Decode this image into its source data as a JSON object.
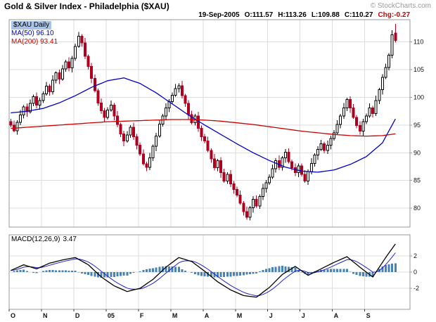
{
  "header": {
    "title": "Gold & Silver Index - Philadelphia ($XAU)",
    "copyright": "© StockCharts.com",
    "date": "19-Sep-2005",
    "quote": {
      "open": "O:111.57",
      "high": "H:113.26",
      "low": "L:109.88",
      "close": "C:110.27",
      "change": "Chg:-0.27"
    }
  },
  "legend": {
    "symbol": "$XAU Daily",
    "ma50": "MA(50) 96.10",
    "ma200": "MA(200) 93.41",
    "macd_label": "MACD(12,26,9)",
    "macd_value": "3.47"
  },
  "colors": {
    "grid": "#dddddd",
    "border": "#999999",
    "candle_down": "#b00020",
    "candle_up_fill": "#ffffff",
    "candle_stroke": "#000000",
    "ma50": "#0000cc",
    "ma200": "#cc0000",
    "macd_line": "#000000",
    "signal": "#2222cc",
    "histogram": "#4682b4",
    "change_negative": "#cc0000",
    "symbol_highlight": "#aac2e4"
  },
  "chart_data": [
    {
      "type": "candlestick",
      "title": "$XAU Daily",
      "x_labels": [
        "O",
        "N",
        "D",
        "05",
        "F",
        "M",
        "A",
        "M",
        "J",
        "J",
        "A",
        "S"
      ],
      "candles_per_month": 10,
      "ylim": [
        76.6,
        114.0
      ],
      "y_ticks": [
        80,
        85,
        90,
        95,
        100,
        105,
        110
      ],
      "grid": true,
      "last_quote": {
        "open": 111.57,
        "high": 113.26,
        "low": 109.88,
        "close": 110.27,
        "change": -0.27
      },
      "candles": [
        [
          95.6,
          96.1,
          94.6,
          95.0
        ],
        [
          95.0,
          95.8,
          93.7,
          94.0
        ],
        [
          94.0,
          95.9,
          93.3,
          95.5
        ],
        [
          95.5,
          97.7,
          95.0,
          96.8
        ],
        [
          96.8,
          98.6,
          96.2,
          98.3
        ],
        [
          98.3,
          98.9,
          96.5,
          97.4
        ],
        [
          97.4,
          99.6,
          97.1,
          98.9
        ],
        [
          98.9,
          100.5,
          98.4,
          100.1
        ],
        [
          100.1,
          100.9,
          98.0,
          98.6
        ],
        [
          98.6,
          99.9,
          97.8,
          99.4
        ],
        [
          99.4,
          101.1,
          99.0,
          100.6
        ],
        [
          100.6,
          102.8,
          100.3,
          102.0
        ],
        [
          102.0,
          102.4,
          100.3,
          101.0
        ],
        [
          101.0,
          104.0,
          100.5,
          103.1
        ],
        [
          103.1,
          104.7,
          102.5,
          104.4
        ],
        [
          104.4,
          105.0,
          102.4,
          103.3
        ],
        [
          103.3,
          105.8,
          103.0,
          105.1
        ],
        [
          105.1,
          106.8,
          104.6,
          106.4
        ],
        [
          106.4,
          107.2,
          104.7,
          105.3
        ],
        [
          105.3,
          107.5,
          104.5,
          107.0
        ],
        [
          107.0,
          109.7,
          106.6,
          109.2
        ],
        [
          109.2,
          111.8,
          108.9,
          111.0
        ],
        [
          111.0,
          111.4,
          109.1,
          109.8
        ],
        [
          109.8,
          110.7,
          106.9,
          107.4
        ],
        [
          107.4,
          107.7,
          105.0,
          105.6
        ],
        [
          105.6,
          106.2,
          102.5,
          103.4
        ],
        [
          103.4,
          104.1,
          100.9,
          101.2
        ],
        [
          101.2,
          101.6,
          98.5,
          99.0
        ],
        [
          99.0,
          99.8,
          97.0,
          97.6
        ],
        [
          97.6,
          98.1,
          95.6,
          96.4
        ],
        [
          96.4,
          98.2,
          96.0,
          97.7
        ],
        [
          97.7,
          99.4,
          97.4,
          98.6
        ],
        [
          98.6,
          99.0,
          95.9,
          96.6
        ],
        [
          96.6,
          97.5,
          94.6,
          95.1
        ],
        [
          95.1,
          95.4,
          92.8,
          93.4
        ],
        [
          93.4,
          94.0,
          91.2,
          92.1
        ],
        [
          92.1,
          93.9,
          91.8,
          93.2
        ],
        [
          93.2,
          95.0,
          92.7,
          94.6
        ],
        [
          94.6,
          95.4,
          92.3,
          92.9
        ],
        [
          92.9,
          93.4,
          90.6,
          91.4
        ],
        [
          91.4,
          91.9,
          89.4,
          89.8
        ],
        [
          89.8,
          90.6,
          87.7,
          88.0
        ],
        [
          88.0,
          88.4,
          86.7,
          87.4
        ],
        [
          87.4,
          90.0,
          86.9,
          89.1
        ],
        [
          89.1,
          91.5,
          88.5,
          91.2
        ],
        [
          91.2,
          93.6,
          90.3,
          93.0
        ],
        [
          93.0,
          95.9,
          92.7,
          95.2
        ],
        [
          95.2,
          97.0,
          94.7,
          96.6
        ],
        [
          96.6,
          98.9,
          96.0,
          98.1
        ],
        [
          98.1,
          99.7,
          97.3,
          99.2
        ],
        [
          99.2,
          100.9,
          98.8,
          100.4
        ],
        [
          100.4,
          102.4,
          100.1,
          101.6
        ],
        [
          101.6,
          102.5,
          100.9,
          102.1
        ],
        [
          102.1,
          103.0,
          99.8,
          100.3
        ],
        [
          100.3,
          100.6,
          98.3,
          98.9
        ],
        [
          98.9,
          99.5,
          96.0,
          96.9
        ],
        [
          96.9,
          97.6,
          95.1,
          95.4
        ],
        [
          95.4,
          97.0,
          94.9,
          96.6
        ],
        [
          96.6,
          97.4,
          93.8,
          94.4
        ],
        [
          94.4,
          94.9,
          92.1,
          92.9
        ],
        [
          92.9,
          93.4,
          91.7,
          92.1
        ],
        [
          92.1,
          92.9,
          90.1,
          90.4
        ],
        [
          90.4,
          90.8,
          88.2,
          88.9
        ],
        [
          88.9,
          89.8,
          86.8,
          87.3
        ],
        [
          87.3,
          88.9,
          86.7,
          88.6
        ],
        [
          88.6,
          89.2,
          85.5,
          86.4
        ],
        [
          86.4,
          87.1,
          84.6,
          84.9
        ],
        [
          84.9,
          86.5,
          84.4,
          86.1
        ],
        [
          86.1,
          86.9,
          83.8,
          84.4
        ],
        [
          84.4,
          84.9,
          82.6,
          83.4
        ],
        [
          83.4,
          83.9,
          82.0,
          82.4
        ],
        [
          82.4,
          83.2,
          80.6,
          80.9
        ],
        [
          80.9,
          81.3,
          78.7,
          79.4
        ],
        [
          79.4,
          80.3,
          77.9,
          78.4
        ],
        [
          78.4,
          80.4,
          77.8,
          80.1
        ],
        [
          80.1,
          82.2,
          79.2,
          81.6
        ],
        [
          81.6,
          82.3,
          80.1,
          80.4
        ],
        [
          80.4,
          82.5,
          79.9,
          82.1
        ],
        [
          82.1,
          84.4,
          81.5,
          83.6
        ],
        [
          83.6,
          85.1,
          82.8,
          84.6
        ],
        [
          84.6,
          86.1,
          84.2,
          85.6
        ],
        [
          85.6,
          87.9,
          85.3,
          87.1
        ],
        [
          87.1,
          89.0,
          86.4,
          88.6
        ],
        [
          88.6,
          89.5,
          86.9,
          87.4
        ],
        [
          87.4,
          89.4,
          86.8,
          89.1
        ],
        [
          89.1,
          90.7,
          88.2,
          90.1
        ],
        [
          90.1,
          90.8,
          88.1,
          88.4
        ],
        [
          88.4,
          88.8,
          86.8,
          87.3
        ],
        [
          87.3,
          88.1,
          85.8,
          86.4
        ],
        [
          86.4,
          88.1,
          85.6,
          87.6
        ],
        [
          87.6,
          88.1,
          85.7,
          86.1
        ],
        [
          86.1,
          86.9,
          84.6,
          84.9
        ],
        [
          84.9,
          87.0,
          84.2,
          86.6
        ],
        [
          86.6,
          89.0,
          86.1,
          88.1
        ],
        [
          88.1,
          89.9,
          87.5,
          89.6
        ],
        [
          89.6,
          91.2,
          88.7,
          90.6
        ],
        [
          90.6,
          92.3,
          90.3,
          91.6
        ],
        [
          91.6,
          92.0,
          89.9,
          90.4
        ],
        [
          90.4,
          92.2,
          89.8,
          91.4
        ],
        [
          91.4,
          93.1,
          90.6,
          92.6
        ],
        [
          92.6,
          94.1,
          92.2,
          93.6
        ],
        [
          93.6,
          95.9,
          93.3,
          95.1
        ],
        [
          95.1,
          97.0,
          94.4,
          96.6
        ],
        [
          96.6,
          99.0,
          96.1,
          98.1
        ],
        [
          98.1,
          99.9,
          97.5,
          99.6
        ],
        [
          99.6,
          100.2,
          97.2,
          98.1
        ],
        [
          98.1,
          98.8,
          96.1,
          96.4
        ],
        [
          96.4,
          96.8,
          94.4,
          94.9
        ],
        [
          94.9,
          95.7,
          93.3,
          93.9
        ],
        [
          93.9,
          96.1,
          93.1,
          95.6
        ],
        [
          95.6,
          97.1,
          95.2,
          96.6
        ],
        [
          96.6,
          98.9,
          96.3,
          98.1
        ],
        [
          98.1,
          98.5,
          96.4,
          97.1
        ],
        [
          97.1,
          100.3,
          96.6,
          99.4
        ],
        [
          99.4,
          101.7,
          98.8,
          101.4
        ],
        [
          101.4,
          104.2,
          100.5,
          103.6
        ],
        [
          103.6,
          106.1,
          103.3,
          105.4
        ],
        [
          105.4,
          108.0,
          104.9,
          107.6
        ],
        [
          107.6,
          112.1,
          107.0,
          111.3
        ],
        [
          111.57,
          113.26,
          109.88,
          110.27
        ]
      ],
      "series": [
        {
          "name": "MA(50)",
          "current": 96.1,
          "color": "#0000cc",
          "keypoint_step": 5,
          "values": [
            97.2,
            97.5,
            98.0,
            99.0,
            100.3,
            101.8,
            103.0,
            103.5,
            102.5,
            100.8,
            98.8,
            96.8,
            95.0,
            93.3,
            91.6,
            90.0,
            88.6,
            87.4,
            86.7,
            86.5,
            86.9,
            87.9,
            89.3,
            91.8,
            96.1
          ]
        },
        {
          "name": "MA(200)",
          "current": 93.41,
          "color": "#cc0000",
          "keypoint_step": 5,
          "values": [
            94.4,
            94.6,
            94.8,
            95.0,
            95.2,
            95.4,
            95.6,
            95.7,
            95.8,
            95.9,
            96.0,
            96.0,
            95.9,
            95.7,
            95.4,
            95.1,
            94.7,
            94.3,
            93.9,
            93.6,
            93.3,
            93.1,
            93.0,
            93.1,
            93.41
          ]
        }
      ]
    },
    {
      "type": "macd",
      "label": "MACD(12,26,9)",
      "value": 3.47,
      "ylim": [
        -4.6,
        4.6
      ],
      "y_ticks": [
        2,
        0,
        -2
      ],
      "keypoint_step": 4,
      "signal_period": 9,
      "macd_keypoints": [
        0.2,
        0.9,
        0.4,
        1.1,
        1.5,
        1.8,
        0.9,
        -0.6,
        -1.7,
        -2.4,
        -2.0,
        -0.9,
        0.6,
        1.8,
        1.3,
        0.1,
        -1.2,
        -2.2,
        -2.9,
        -3.1,
        -1.9,
        -0.3,
        0.7,
        -0.4,
        0.4,
        1.2,
        1.9,
        0.6,
        -0.6,
        1.8,
        3.47
      ]
    }
  ]
}
